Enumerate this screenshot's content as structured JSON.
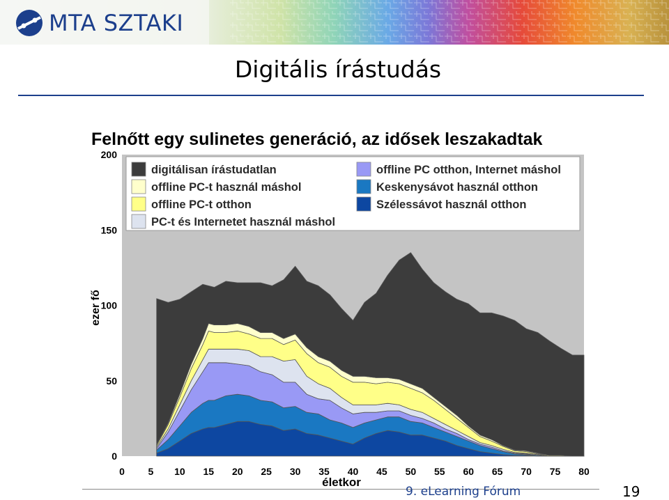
{
  "header": {
    "logo_text": "MTA SZTAKI"
  },
  "slide": {
    "title": "Digitális írástudás"
  },
  "footer": {
    "event": "9. eLearning Fórum",
    "page_number": "19"
  },
  "colors": {
    "title_blue": "#1c3f8c",
    "plot_background": "#c4c4c4",
    "series": [
      "#3c3c3c",
      "#ffffcc",
      "#ffff88",
      "#dde3ef",
      "#9999f5",
      "#1a78c2",
      "#0d47a1"
    ]
  },
  "chart_data": {
    "type": "area",
    "stacked": true,
    "title": "Felnőtt egy sulinetes generáció, az idősek leszakadtak",
    "xlabel": "életkor",
    "ylabel": "ezer fő",
    "xlim": [
      0,
      80
    ],
    "ylim": [
      0,
      200
    ],
    "x_ticks": [
      "0",
      "5",
      "10",
      "15",
      "20",
      "25",
      "30",
      "35",
      "40",
      "45",
      "50",
      "55",
      "60",
      "65",
      "70",
      "75",
      "80"
    ],
    "y_ticks": [
      "0",
      "50",
      "100",
      "150",
      "200"
    ],
    "legend_position": "top",
    "x": [
      6,
      8,
      10,
      12,
      14,
      15,
      16,
      18,
      20,
      22,
      24,
      26,
      28,
      30,
      32,
      34,
      36,
      38,
      40,
      42,
      44,
      46,
      48,
      50,
      52,
      54,
      56,
      58,
      60,
      62,
      64,
      66,
      68,
      70,
      72,
      74,
      76,
      78,
      80
    ],
    "series": [
      {
        "name": "Szélessávot használ otthon",
        "color": "#0d47a1",
        "values": [
          2,
          5,
          10,
          15,
          18,
          19,
          19,
          21,
          23,
          23,
          21,
          20,
          17,
          18,
          15,
          14,
          12,
          10,
          8,
          12,
          15,
          17,
          16,
          14,
          14,
          12,
          10,
          7,
          5,
          3,
          2,
          1,
          0.5,
          0.5,
          0,
          0,
          0,
          0,
          0
        ]
      },
      {
        "name": "Keskenysávot használ otthon",
        "color": "#1a78c2",
        "values": [
          2,
          6,
          10,
          14,
          17,
          18,
          18,
          19,
          18,
          17,
          16,
          16,
          15,
          15,
          14,
          14,
          12,
          12,
          11,
          10,
          9,
          9,
          10,
          9,
          8,
          7,
          6,
          6,
          5,
          4,
          3,
          2,
          1,
          0.5,
          0.5,
          0,
          0,
          0,
          0
        ]
      },
      {
        "name": "offline PC otthon, Internet máshol",
        "color": "#9999f5",
        "values": [
          1,
          5,
          10,
          15,
          21,
          25,
          25,
          22,
          20,
          20,
          19,
          18,
          17,
          16,
          12,
          10,
          13,
          10,
          9,
          7,
          5,
          4,
          4,
          4,
          3,
          3,
          2,
          2,
          1,
          1,
          1,
          0.5,
          0.5,
          0.5,
          0,
          0,
          0,
          0,
          0
        ]
      },
      {
        "name": "PC-t és Internetet használ máshol",
        "color": "#dde3ef",
        "values": [
          1,
          2,
          4,
          6,
          8,
          9,
          9,
          9,
          10,
          10,
          10,
          12,
          14,
          15,
          12,
          10,
          8,
          7,
          6,
          5,
          5,
          5,
          4,
          4,
          4,
          3,
          3,
          2,
          2,
          1,
          1,
          1,
          0.5,
          0.5,
          0.5,
          0,
          0,
          0,
          0
        ]
      },
      {
        "name": "offline PC-t otthon",
        "color": "#ffff88",
        "values": [
          1,
          3,
          5,
          8,
          10,
          12,
          11,
          11,
          12,
          11,
          12,
          12,
          11,
          13,
          15,
          14,
          14,
          14,
          15,
          15,
          14,
          14,
          14,
          14,
          13,
          12,
          10,
          8,
          6,
          4,
          3,
          2,
          1,
          1,
          0.5,
          0.5,
          0.5,
          0,
          0
        ]
      },
      {
        "name": "offline PC-t használ máshol",
        "color": "#ffffcc",
        "values": [
          0.5,
          1,
          2,
          3,
          4,
          5,
          5,
          5,
          5,
          5,
          4,
          4,
          4,
          4,
          4,
          4,
          4,
          4,
          4,
          4,
          4,
          3,
          3,
          3,
          3,
          2,
          2,
          2,
          1,
          1,
          1,
          0.5,
          0.5,
          0.5,
          0.5,
          0,
          0,
          0,
          0
        ]
      },
      {
        "name": "digitálisan írástudatlan",
        "color": "#3c3c3c",
        "values": [
          97,
          80,
          63,
          48,
          36,
          25,
          25,
          29,
          27,
          29,
          33,
          31,
          39,
          45,
          44,
          47,
          44,
          41,
          37,
          49,
          56,
          68,
          79,
          87,
          79,
          76,
          76,
          77,
          81,
          81,
          84,
          86,
          86,
          81,
          80,
          76,
          71,
          67,
          67
        ]
      }
    ]
  }
}
